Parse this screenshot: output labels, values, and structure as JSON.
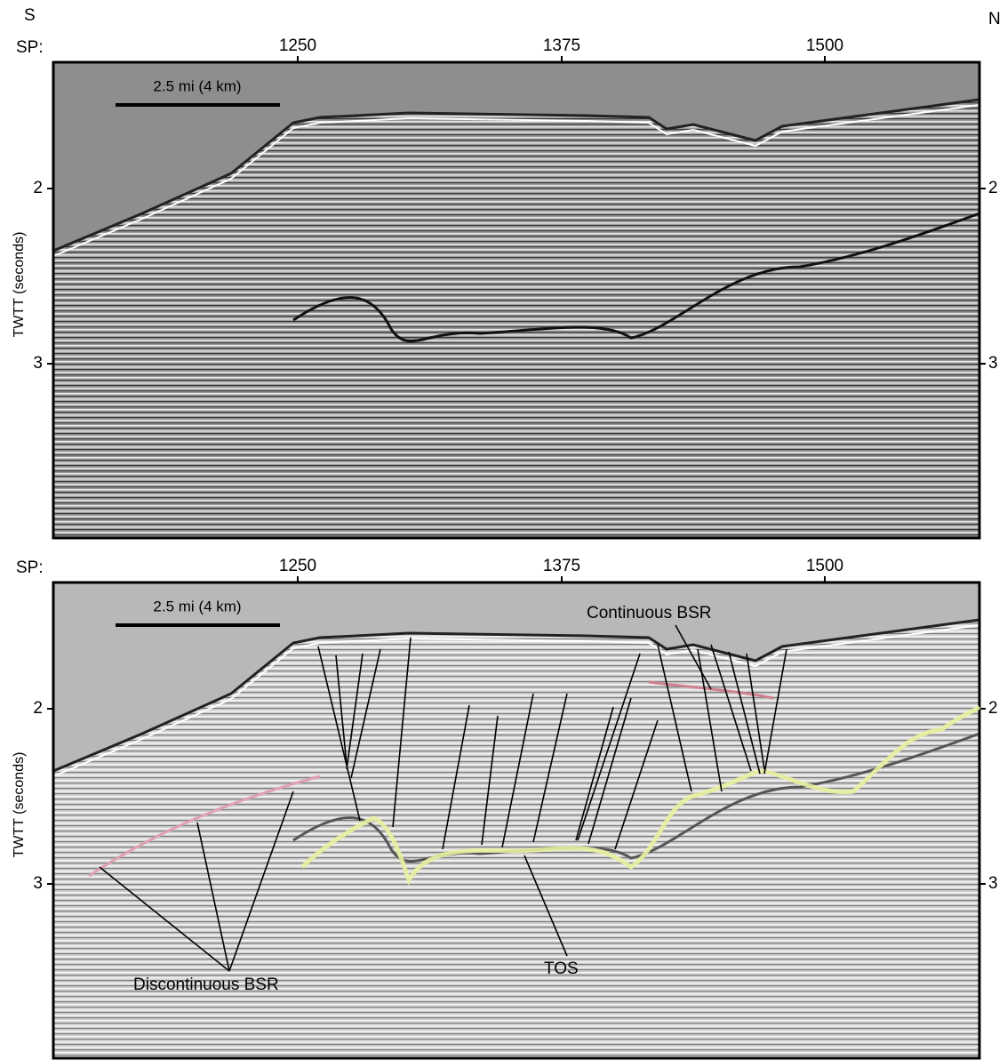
{
  "header": {
    "left": "S",
    "right": "N"
  },
  "panels": [
    {
      "sp_label": "SP:",
      "x_ticks": [
        1250,
        1375,
        1500
      ],
      "y_ticks": [
        2,
        3
      ],
      "y_label": "TWTT (seconds)",
      "scale_bar": "2.5 mi (4 km)"
    },
    {
      "sp_label": "SP:",
      "x_ticks": [
        1250,
        1375,
        1500
      ],
      "y_ticks": [
        2,
        3
      ],
      "y_label": "TWTT (seconds)",
      "scale_bar": "2.5 mi (4 km)",
      "annotations": [
        "Continuous BSR",
        "Discontinuous BSR",
        "TOS"
      ]
    }
  ]
}
